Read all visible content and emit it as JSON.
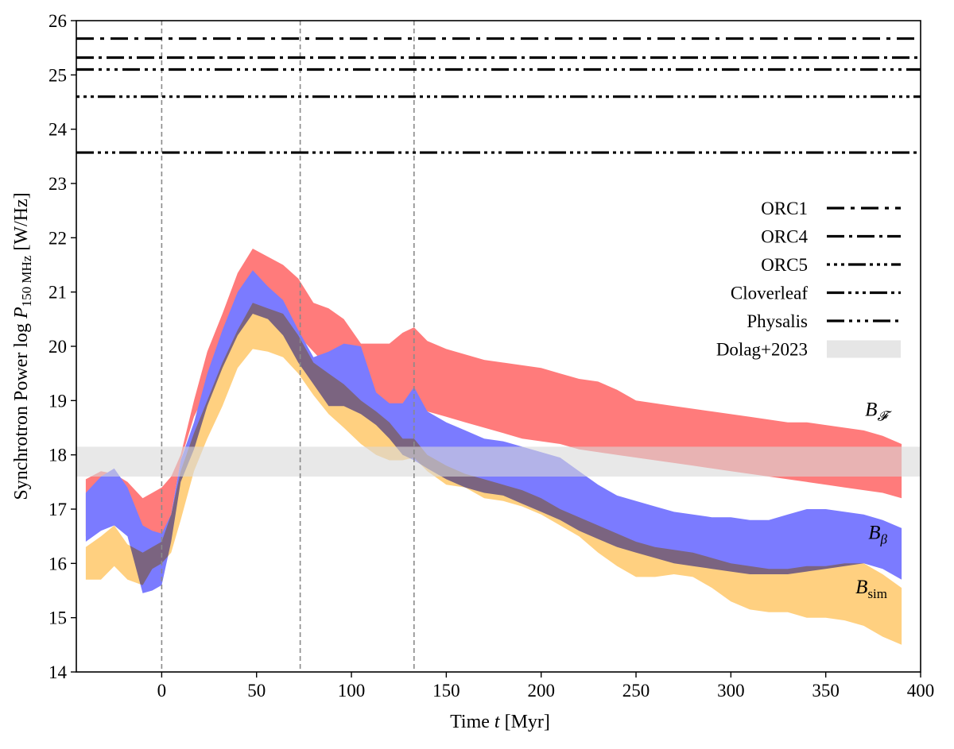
{
  "chart_data": {
    "type": "area",
    "xlabel": "Time t [Myr]",
    "ylabel": "Synchrotron Power log P150 MHz [W/Hz]",
    "ylabel_parts": {
      "prefix": "Synchrotron Power log ",
      "var": "P",
      "sub": "150 MHz",
      "unit": " [W/Hz]"
    },
    "xlabel_parts": {
      "prefix": "Time ",
      "var": "t",
      "unit": " [Myr]"
    },
    "xlim": [
      -45,
      400
    ],
    "ylim": [
      14,
      26
    ],
    "xticks": [
      0,
      50,
      100,
      150,
      200,
      250,
      300,
      350,
      400
    ],
    "yticks": [
      14,
      15,
      16,
      17,
      18,
      19,
      20,
      21,
      22,
      23,
      24,
      25,
      26
    ],
    "grid": false,
    "legend_position": "right",
    "vlines": [
      0,
      73,
      133
    ],
    "hlines": [
      {
        "name": "ORC1",
        "y": 25.67,
        "dash": "dashdot",
        "legend_dash": "22 8 5 8"
      },
      {
        "name": "ORC4",
        "y": 25.32,
        "dash": "dashdotdot",
        "legend_dash": "22 6 4 6"
      },
      {
        "name": "ORC5",
        "y": 24.6,
        "dash": "dashdotdotdot",
        "legend_dash": "4 5 4 5 4 5 22 5"
      },
      {
        "name": "Cloverleaf",
        "y": 23.57,
        "dash": "dashdots",
        "legend_dash": "22 5 4 5 4 5 4 5"
      },
      {
        "name": "Physalis",
        "y": 25.1,
        "dash": "dashdotted",
        "legend_dash": "22 6 4 6 4 6 4 6"
      }
    ],
    "shaded_band": {
      "name": "Dolag+2023",
      "y_low": 17.6,
      "y_high": 18.15,
      "color": "#d9d9d9"
    },
    "series": [
      {
        "name": "B_F",
        "label": {
          "base": "B",
          "sub": "𝓕"
        },
        "color": "#ff7b7b",
        "x": [
          -40,
          -32,
          -25,
          -18,
          -10,
          -5,
          0,
          5,
          10,
          17,
          24,
          32,
          40,
          48,
          56,
          64,
          72,
          80,
          88,
          96,
          105,
          113,
          120,
          127,
          133,
          140,
          150,
          160,
          170,
          180,
          190,
          200,
          210,
          220,
          230,
          240,
          250,
          260,
          270,
          280,
          290,
          300,
          310,
          320,
          330,
          340,
          350,
          360,
          370,
          380,
          390
        ],
        "lower": [
          16.5,
          16.8,
          16.9,
          16.7,
          16.5,
          16.4,
          16.35,
          16.9,
          17.9,
          18.7,
          19.2,
          19.8,
          20.4,
          20.9,
          20.85,
          20.6,
          20.2,
          19.9,
          19.6,
          19.3,
          19.0,
          18.9,
          18.75,
          18.6,
          18.7,
          18.8,
          18.7,
          18.6,
          18.5,
          18.4,
          18.3,
          18.25,
          18.2,
          18.1,
          18.05,
          18.0,
          17.95,
          17.9,
          17.85,
          17.8,
          17.75,
          17.7,
          17.65,
          17.6,
          17.55,
          17.5,
          17.45,
          17.4,
          17.35,
          17.3,
          17.2
        ],
        "upper": [
          17.55,
          17.7,
          17.65,
          17.5,
          17.2,
          17.3,
          17.4,
          17.6,
          18.0,
          19.0,
          19.9,
          20.6,
          21.35,
          21.8,
          21.65,
          21.5,
          21.25,
          20.8,
          20.7,
          20.5,
          20.05,
          20.05,
          20.05,
          20.25,
          20.35,
          20.1,
          19.95,
          19.85,
          19.75,
          19.7,
          19.65,
          19.6,
          19.5,
          19.4,
          19.35,
          19.2,
          19.0,
          18.95,
          18.9,
          18.85,
          18.8,
          18.75,
          18.7,
          18.65,
          18.6,
          18.6,
          18.55,
          18.5,
          18.45,
          18.35,
          18.2
        ]
      },
      {
        "name": "B_beta",
        "label": {
          "base": "B",
          "sub": "β"
        },
        "color": "#7b7bff",
        "x": [
          -40,
          -32,
          -25,
          -18,
          -10,
          -5,
          0,
          5,
          10,
          17,
          24,
          32,
          40,
          48,
          56,
          64,
          72,
          80,
          88,
          96,
          105,
          113,
          120,
          127,
          133,
          140,
          150,
          160,
          170,
          180,
          190,
          200,
          210,
          220,
          230,
          240,
          250,
          260,
          270,
          280,
          290,
          300,
          310,
          320,
          330,
          340,
          350,
          360,
          370,
          380,
          390
        ],
        "lower": [
          16.4,
          16.6,
          16.7,
          16.5,
          15.45,
          15.5,
          15.6,
          16.4,
          17.5,
          18.1,
          18.9,
          19.6,
          20.2,
          20.6,
          20.5,
          20.2,
          19.7,
          19.3,
          18.9,
          18.9,
          18.75,
          18.55,
          18.3,
          18.0,
          17.9,
          17.75,
          17.55,
          17.4,
          17.3,
          17.25,
          17.1,
          16.95,
          16.8,
          16.6,
          16.45,
          16.3,
          16.2,
          16.1,
          16.0,
          15.95,
          15.9,
          15.85,
          15.8,
          15.8,
          15.8,
          15.85,
          15.9,
          15.95,
          16.0,
          15.9,
          15.7
        ],
        "upper": [
          17.3,
          17.6,
          17.75,
          17.4,
          16.7,
          16.6,
          16.55,
          16.9,
          17.9,
          18.6,
          19.5,
          20.3,
          21.0,
          21.4,
          21.1,
          20.85,
          20.3,
          19.8,
          19.9,
          20.05,
          20.0,
          19.15,
          18.95,
          18.95,
          19.25,
          18.8,
          18.6,
          18.45,
          18.3,
          18.25,
          18.15,
          18.05,
          17.95,
          17.7,
          17.45,
          17.25,
          17.15,
          17.05,
          16.95,
          16.9,
          16.85,
          16.85,
          16.8,
          16.8,
          16.9,
          17.0,
          17.0,
          16.95,
          16.9,
          16.8,
          16.65
        ]
      },
      {
        "name": "B_sim",
        "label": {
          "base": "B",
          "sub": "sim"
        },
        "color": "#ffc96e",
        "x": [
          -40,
          -32,
          -25,
          -18,
          -10,
          -5,
          0,
          5,
          10,
          17,
          24,
          32,
          40,
          48,
          56,
          64,
          72,
          80,
          88,
          96,
          105,
          113,
          120,
          127,
          133,
          140,
          150,
          160,
          170,
          180,
          190,
          200,
          210,
          220,
          230,
          240,
          250,
          260,
          270,
          280,
          290,
          300,
          310,
          320,
          330,
          340,
          350,
          360,
          370,
          380,
          390
        ],
        "lower": [
          15.7,
          15.7,
          15.95,
          15.7,
          15.6,
          15.9,
          16.0,
          16.2,
          16.8,
          17.7,
          18.3,
          18.9,
          19.6,
          19.95,
          19.9,
          19.8,
          19.5,
          19.1,
          18.75,
          18.5,
          18.2,
          18.0,
          17.9,
          17.9,
          17.95,
          17.7,
          17.45,
          17.4,
          17.2,
          17.15,
          17.05,
          16.9,
          16.7,
          16.5,
          16.2,
          15.95,
          15.75,
          15.75,
          15.8,
          15.75,
          15.55,
          15.3,
          15.15,
          15.1,
          15.1,
          15.0,
          15.0,
          14.95,
          14.85,
          14.65,
          14.5
        ],
        "upper": [
          16.3,
          16.5,
          16.7,
          16.35,
          16.2,
          16.3,
          16.4,
          16.9,
          17.7,
          18.4,
          19.0,
          19.7,
          20.3,
          20.8,
          20.7,
          20.6,
          20.2,
          19.7,
          19.5,
          19.3,
          19.0,
          18.8,
          18.6,
          18.3,
          18.3,
          18.0,
          17.8,
          17.65,
          17.55,
          17.45,
          17.35,
          17.2,
          17.0,
          16.85,
          16.7,
          16.55,
          16.4,
          16.3,
          16.25,
          16.2,
          16.1,
          16.0,
          15.95,
          15.9,
          15.9,
          15.95,
          15.95,
          16.0,
          16.0,
          15.8,
          15.55
        ]
      }
    ]
  }
}
